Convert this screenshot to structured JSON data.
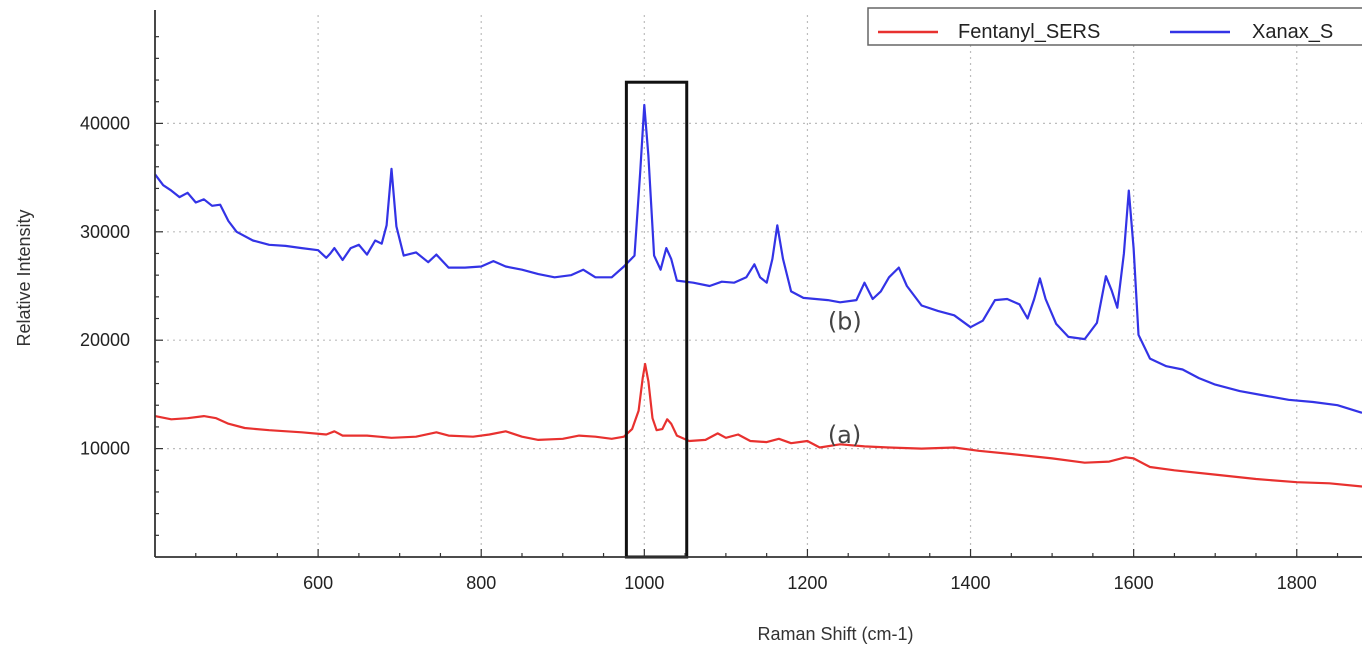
{
  "chart_data": {
    "type": "line",
    "xlabel": "Raman Shift (cm-1)",
    "ylabel": "Relative Intensity",
    "xlim": [
      400,
      1880
    ],
    "ylim": [
      0,
      50000
    ],
    "x_ticks": [
      600,
      800,
      1000,
      1200,
      1400,
      1600,
      1800
    ],
    "y_ticks": [
      10000,
      20000,
      30000,
      40000
    ],
    "grid": true,
    "legend_position": "top-right",
    "highlight_box": {
      "x_range": [
        978,
        1052
      ],
      "y_range": [
        0,
        43800
      ]
    },
    "annotations": [
      {
        "text": "(b)",
        "x": 1225,
        "y": 21000
      },
      {
        "text": "(a)",
        "x": 1225,
        "y": 10500
      }
    ],
    "series": [
      {
        "name": "Fentanyl_SERS",
        "color": "#e8312f",
        "points": [
          [
            400,
            13000
          ],
          [
            420,
            12700
          ],
          [
            440,
            12800
          ],
          [
            460,
            13000
          ],
          [
            475,
            12800
          ],
          [
            490,
            12300
          ],
          [
            510,
            11900
          ],
          [
            540,
            11700
          ],
          [
            580,
            11500
          ],
          [
            610,
            11300
          ],
          [
            620,
            11600
          ],
          [
            630,
            11200
          ],
          [
            660,
            11200
          ],
          [
            690,
            11000
          ],
          [
            720,
            11100
          ],
          [
            745,
            11500
          ],
          [
            760,
            11200
          ],
          [
            790,
            11100
          ],
          [
            810,
            11300
          ],
          [
            830,
            11600
          ],
          [
            850,
            11100
          ],
          [
            870,
            10800
          ],
          [
            900,
            10900
          ],
          [
            920,
            11200
          ],
          [
            940,
            11100
          ],
          [
            960,
            10900
          ],
          [
            975,
            11100
          ],
          [
            985,
            11800
          ],
          [
            993,
            13500
          ],
          [
            998,
            16500
          ],
          [
            1001,
            17800
          ],
          [
            1005,
            16200
          ],
          [
            1010,
            12800
          ],
          [
            1015,
            11700
          ],
          [
            1022,
            11800
          ],
          [
            1028,
            12700
          ],
          [
            1033,
            12300
          ],
          [
            1040,
            11200
          ],
          [
            1055,
            10700
          ],
          [
            1075,
            10800
          ],
          [
            1090,
            11400
          ],
          [
            1100,
            11000
          ],
          [
            1115,
            11300
          ],
          [
            1130,
            10700
          ],
          [
            1150,
            10600
          ],
          [
            1165,
            10900
          ],
          [
            1180,
            10500
          ],
          [
            1200,
            10700
          ],
          [
            1215,
            10100
          ],
          [
            1240,
            10400
          ],
          [
            1270,
            10200
          ],
          [
            1300,
            10100
          ],
          [
            1340,
            10000
          ],
          [
            1380,
            10100
          ],
          [
            1410,
            9800
          ],
          [
            1450,
            9500
          ],
          [
            1500,
            9100
          ],
          [
            1540,
            8700
          ],
          [
            1570,
            8800
          ],
          [
            1590,
            9200
          ],
          [
            1600,
            9100
          ],
          [
            1620,
            8300
          ],
          [
            1650,
            8000
          ],
          [
            1700,
            7600
          ],
          [
            1750,
            7200
          ],
          [
            1800,
            6900
          ],
          [
            1840,
            6800
          ],
          [
            1880,
            6500
          ]
        ]
      },
      {
        "name": "Xanax_S",
        "color": "#3333e6",
        "points": [
          [
            400,
            35300
          ],
          [
            410,
            34300
          ],
          [
            420,
            33800
          ],
          [
            430,
            33200
          ],
          [
            440,
            33600
          ],
          [
            450,
            32700
          ],
          [
            460,
            33000
          ],
          [
            470,
            32400
          ],
          [
            480,
            32500
          ],
          [
            490,
            31000
          ],
          [
            500,
            30000
          ],
          [
            520,
            29200
          ],
          [
            540,
            28800
          ],
          [
            560,
            28700
          ],
          [
            580,
            28500
          ],
          [
            600,
            28300
          ],
          [
            610,
            27600
          ],
          [
            615,
            28000
          ],
          [
            620,
            28500
          ],
          [
            630,
            27400
          ],
          [
            640,
            28500
          ],
          [
            650,
            28800
          ],
          [
            660,
            27900
          ],
          [
            670,
            29200
          ],
          [
            678,
            28900
          ],
          [
            684,
            30600
          ],
          [
            690,
            35800
          ],
          [
            696,
            30500
          ],
          [
            705,
            27800
          ],
          [
            720,
            28100
          ],
          [
            735,
            27200
          ],
          [
            745,
            27900
          ],
          [
            760,
            26700
          ],
          [
            780,
            26700
          ],
          [
            800,
            26800
          ],
          [
            815,
            27300
          ],
          [
            830,
            26800
          ],
          [
            850,
            26500
          ],
          [
            870,
            26100
          ],
          [
            890,
            25800
          ],
          [
            910,
            26000
          ],
          [
            925,
            26500
          ],
          [
            940,
            25800
          ],
          [
            960,
            25800
          ],
          [
            975,
            26800
          ],
          [
            988,
            27800
          ],
          [
            995,
            35500
          ],
          [
            1000,
            41700
          ],
          [
            1005,
            37000
          ],
          [
            1012,
            27800
          ],
          [
            1020,
            26500
          ],
          [
            1027,
            28500
          ],
          [
            1033,
            27500
          ],
          [
            1040,
            25500
          ],
          [
            1060,
            25300
          ],
          [
            1080,
            25000
          ],
          [
            1095,
            25400
          ],
          [
            1110,
            25300
          ],
          [
            1125,
            25800
          ],
          [
            1135,
            27000
          ],
          [
            1142,
            25800
          ],
          [
            1150,
            25300
          ],
          [
            1157,
            27500
          ],
          [
            1163,
            30600
          ],
          [
            1170,
            27500
          ],
          [
            1180,
            24500
          ],
          [
            1195,
            23900
          ],
          [
            1210,
            23800
          ],
          [
            1225,
            23700
          ],
          [
            1240,
            23500
          ],
          [
            1260,
            23700
          ],
          [
            1270,
            25300
          ],
          [
            1280,
            23800
          ],
          [
            1290,
            24500
          ],
          [
            1300,
            25800
          ],
          [
            1312,
            26700
          ],
          [
            1322,
            25000
          ],
          [
            1340,
            23200
          ],
          [
            1360,
            22700
          ],
          [
            1380,
            22300
          ],
          [
            1400,
            21200
          ],
          [
            1415,
            21800
          ],
          [
            1430,
            23700
          ],
          [
            1445,
            23800
          ],
          [
            1460,
            23300
          ],
          [
            1470,
            22000
          ],
          [
            1478,
            23800
          ],
          [
            1485,
            25700
          ],
          [
            1492,
            23800
          ],
          [
            1505,
            21500
          ],
          [
            1520,
            20300
          ],
          [
            1540,
            20100
          ],
          [
            1555,
            21600
          ],
          [
            1566,
            25900
          ],
          [
            1573,
            24600
          ],
          [
            1580,
            23000
          ],
          [
            1588,
            28000
          ],
          [
            1594,
            33800
          ],
          [
            1600,
            28500
          ],
          [
            1606,
            20500
          ],
          [
            1620,
            18300
          ],
          [
            1640,
            17600
          ],
          [
            1660,
            17300
          ],
          [
            1680,
            16500
          ],
          [
            1700,
            15900
          ],
          [
            1730,
            15300
          ],
          [
            1760,
            14900
          ],
          [
            1790,
            14500
          ],
          [
            1820,
            14300
          ],
          [
            1850,
            14000
          ],
          [
            1880,
            13300
          ]
        ]
      }
    ]
  }
}
